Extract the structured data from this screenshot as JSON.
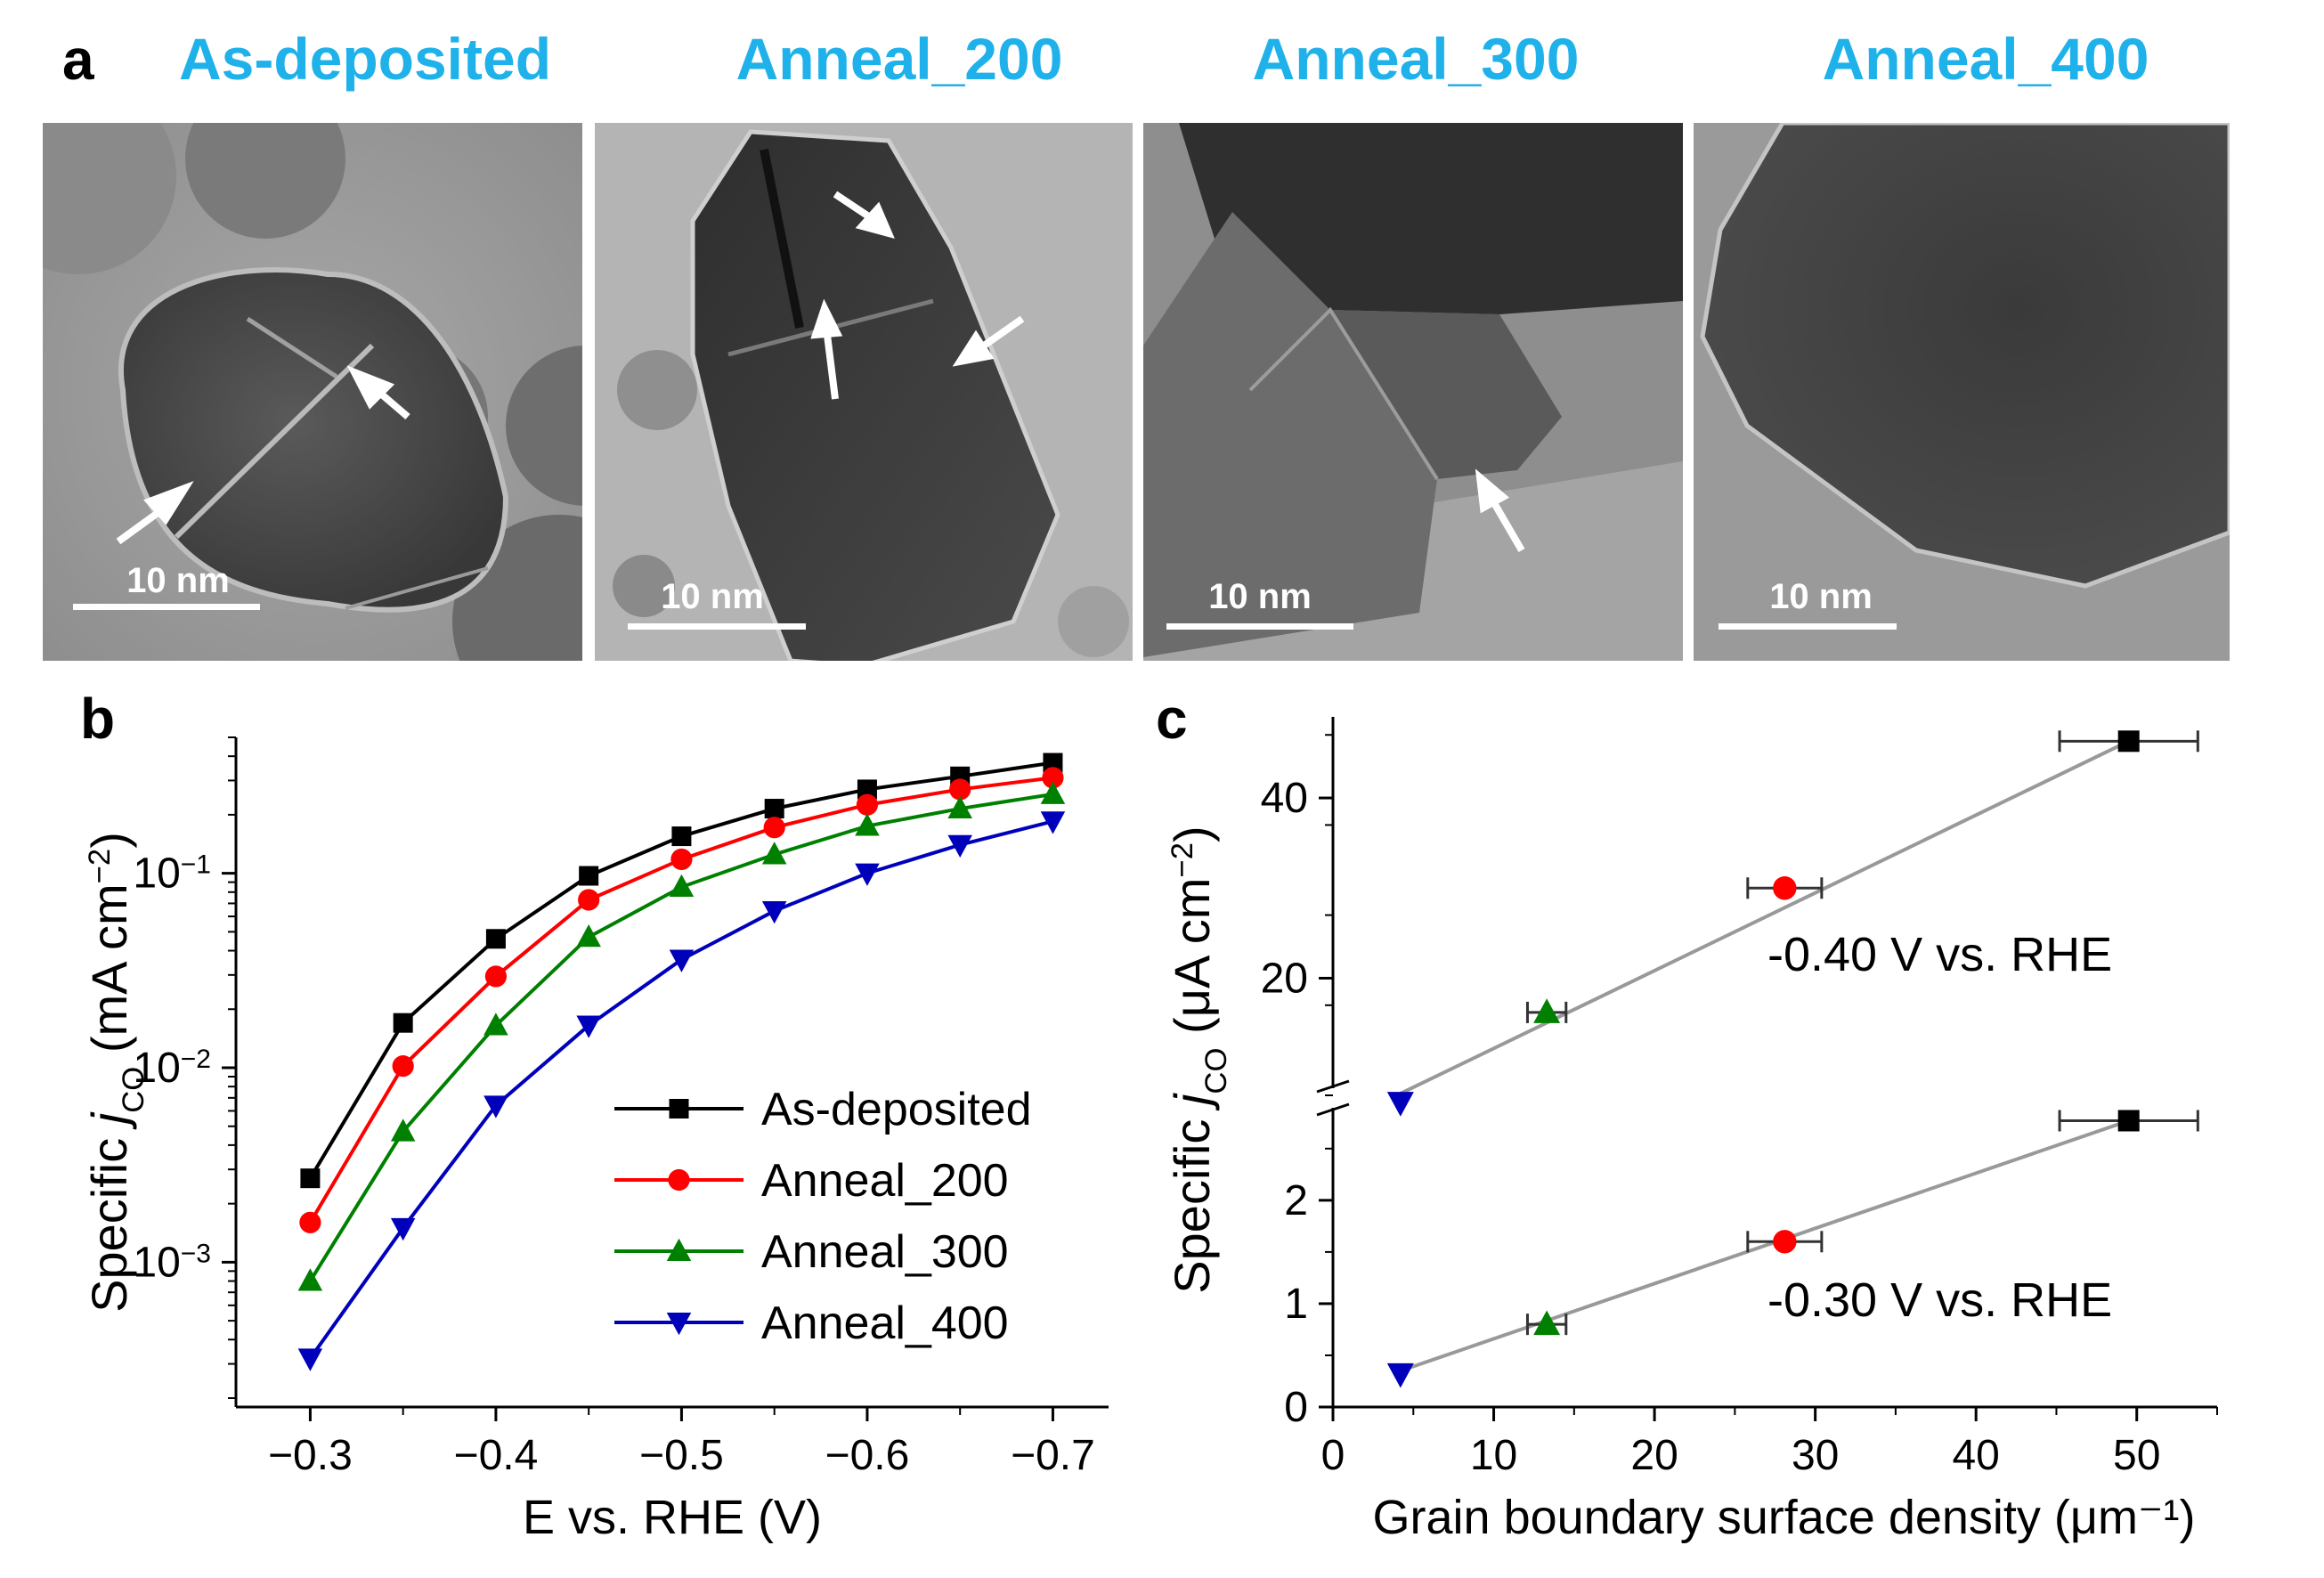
{
  "panel_a": {
    "label": "a",
    "titles": [
      "As-deposited",
      "Anneal_200",
      "Anneal_300",
      "Anneal_400"
    ],
    "scale_bar_label": "10 nm",
    "title_color": "#1fb1ea"
  },
  "panel_b": {
    "label": "b"
  },
  "panel_c": {
    "label": "c"
  },
  "chart_data": [
    {
      "type": "line",
      "panel": "b",
      "yscale": "log",
      "x": [
        -0.3,
        -0.35,
        -0.4,
        -0.45,
        -0.5,
        -0.55,
        -0.6,
        -0.65,
        -0.7
      ],
      "x_ticks": [
        -0.3,
        -0.4,
        -0.5,
        -0.6,
        -0.7
      ],
      "x_tick_labels": [
        "−0.3",
        "−0.4",
        "−0.5",
        "−0.6",
        "−0.7"
      ],
      "xlim": [
        -0.26,
        -0.73
      ],
      "ylim": [
        0.00018,
        0.5
      ],
      "xlabel": "E vs. RHE (V)",
      "ylabel": {
        "pre": "Specific ",
        "var": "j",
        "sub": "CO",
        "post": " (mA cm",
        "sup": "−2",
        "end": ")"
      },
      "y_tick_labels": [
        {
          "base": "10",
          "exp": "−3"
        },
        {
          "base": "10",
          "exp": "−2"
        },
        {
          "base": "10",
          "exp": "−1"
        }
      ],
      "series": [
        {
          "name": "As-deposited",
          "color": "#000000",
          "marker": "square",
          "values": [
            0.0027,
            0.017,
            0.046,
            0.097,
            0.155,
            0.215,
            0.27,
            0.315,
            0.37
          ]
        },
        {
          "name": "Anneal_200",
          "color": "#ff0000",
          "marker": "circle",
          "values": [
            0.0016,
            0.0102,
            0.0295,
            0.073,
            0.118,
            0.172,
            0.225,
            0.27,
            0.31
          ]
        },
        {
          "name": "Anneal_300",
          "color": "#008000",
          "marker": "triangle-up",
          "values": [
            0.0008,
            0.0047,
            0.0165,
            0.047,
            0.085,
            0.125,
            0.175,
            0.215,
            0.255
          ]
        },
        {
          "name": "Anneal_400",
          "color": "#0000bb",
          "marker": "triangle-down",
          "values": [
            0.00032,
            0.0015,
            0.0064,
            0.0165,
            0.036,
            0.064,
            0.1,
            0.14,
            0.185
          ]
        }
      ]
    },
    {
      "type": "scatter",
      "panel": "c",
      "broken_y_axis": true,
      "xlabel": "Grain boundary surface density (μm⁻¹)",
      "ylabel": {
        "pre": "Specific ",
        "var": "j",
        "sub": "CO",
        "post": " (μA cm",
        "sup": "−2",
        "end": ")"
      },
      "xlim": [
        0,
        55
      ],
      "x_ticks": [
        0,
        10,
        20,
        30,
        40,
        50
      ],
      "x_tick_labels": [
        "0",
        "10",
        "20",
        "30",
        "40",
        "50"
      ],
      "fit_line_color": "#999999",
      "point_colors": [
        "#0000bb",
        "#008000",
        "#ff0000",
        "#000000"
      ],
      "point_markers": [
        "triangle-down",
        "triangle-up",
        "circle",
        "square"
      ],
      "segments": [
        {
          "annotation": "-0.40 V vs. RHE",
          "ylim": [
            7,
            49
          ],
          "y_ticks": [
            20,
            40
          ],
          "y_tick_labels": [
            "20",
            "40"
          ],
          "points": [
            {
              "x": 4.2,
              "y": 6.2,
              "xerr": 0
            },
            {
              "x": 13.3,
              "y": 16.2,
              "xerr": 1.2
            },
            {
              "x": 28.1,
              "y": 30.0,
              "xerr": 2.3
            },
            {
              "x": 49.5,
              "y": 46.3,
              "xerr": 4.3
            }
          ],
          "fit": {
            "x": [
              4.2,
              49.5
            ],
            "y": [
              7.2,
              46.3
            ]
          }
        },
        {
          "annotation": "-0.30 V vs. RHE",
          "ylim": [
            0,
            2.8
          ],
          "y_ticks": [
            0,
            1,
            2
          ],
          "y_tick_labels": [
            "0",
            "1",
            "2"
          ],
          "points": [
            {
              "x": 4.2,
              "y": 0.32,
              "xerr": 0
            },
            {
              "x": 13.3,
              "y": 0.8,
              "xerr": 1.2
            },
            {
              "x": 28.1,
              "y": 1.6,
              "xerr": 2.3
            },
            {
              "x": 49.5,
              "y": 2.77,
              "xerr": 4.3
            }
          ],
          "fit": {
            "x": [
              4.2,
              49.5
            ],
            "y": [
              0.35,
              2.77
            ]
          }
        }
      ]
    }
  ]
}
